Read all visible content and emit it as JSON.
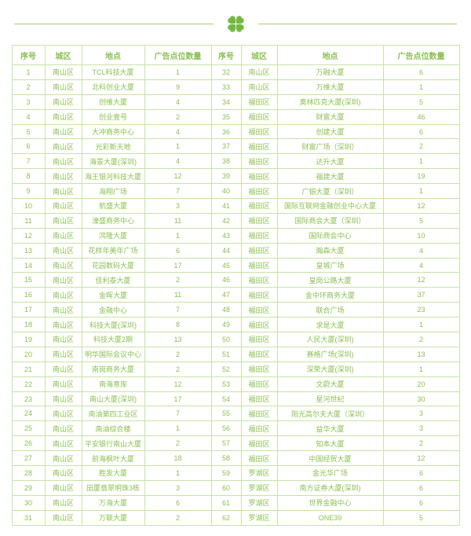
{
  "colors": {
    "accent_green": "#8cc152",
    "border_green": "#c9e3a6",
    "clover_green": "#72b93f",
    "divider_line_green": "#a9cf72"
  },
  "header": {
    "icon": "four-leaf-clover-icon"
  },
  "table": {
    "columns": [
      "序号",
      "城区",
      "地点",
      "广告点位数量",
      "序号",
      "城区",
      "地点",
      "广告点位数量"
    ],
    "rows": [
      [
        1,
        "南山区",
        "TCL科技大厦",
        1,
        32,
        "南山区",
        "万融大厦",
        6
      ],
      [
        2,
        "南山区",
        "北科创业大厦",
        9,
        33,
        "南山区",
        "万维大厦",
        1
      ],
      [
        3,
        "南山区",
        "创维大厦",
        4,
        34,
        "福田区",
        "奥林匹克大厦(深圳)",
        5
      ],
      [
        4,
        "南山区",
        "创业壹号",
        2,
        35,
        "福田区",
        "财富大厦",
        46
      ],
      [
        5,
        "南山区",
        "大冲商务中心",
        4,
        36,
        "福田区",
        "创建大厦",
        6
      ],
      [
        6,
        "南山区",
        "光彩新天地",
        1,
        37,
        "福田区",
        "财富广场（深圳）",
        2
      ],
      [
        7,
        "南山区",
        "海景大厦(深圳)",
        4,
        38,
        "福田区",
        "达升大厦",
        1
      ],
      [
        8,
        "南山区",
        "海王银河科技大厦",
        12,
        39,
        "福田区",
        "福建大厦",
        19
      ],
      [
        9,
        "南山区",
        "海翔广场",
        7,
        40,
        "福田区",
        "广银大厦（深圳）",
        1
      ],
      [
        10,
        "南山区",
        "航盛大厦",
        3,
        41,
        "福田区",
        "国际互联网金融创业中心大厦",
        12
      ],
      [
        11,
        "南山区",
        "濠盛商务中心",
        11,
        42,
        "福田区",
        "国际商会大厦（深圳）",
        5
      ],
      [
        12,
        "南山区",
        "鸿隆大厦",
        1,
        43,
        "福田区",
        "国际商会中心",
        10
      ],
      [
        13,
        "南山区",
        "花样年美年广场",
        6,
        44,
        "福田区",
        "瀚森大厦",
        4
      ],
      [
        14,
        "南山区",
        "花园数码大厦",
        17,
        45,
        "福田区",
        "皇城广场",
        4
      ],
      [
        15,
        "南山区",
        "佳利泰大厦",
        2,
        46,
        "福田区",
        "皇岗公路大厦",
        12
      ],
      [
        16,
        "南山区",
        "金晖大厦",
        11,
        47,
        "福田区",
        "金中环商务大厦",
        37
      ],
      [
        17,
        "南山区",
        "金融中心",
        7,
        48,
        "福田区",
        "联合广场",
        23
      ],
      [
        18,
        "南山区",
        "科技大厦(深圳)",
        8,
        49,
        "福田区",
        "求是大厦",
        1
      ],
      [
        19,
        "南山区",
        "科技大厦2期",
        13,
        50,
        "福田区",
        "人民大厦(深圳)",
        2
      ],
      [
        20,
        "南山区",
        "明华国际会议中心",
        2,
        51,
        "福田区",
        "赛格广场(深圳)",
        13
      ],
      [
        21,
        "南山区",
        "南岗商务大厦",
        2,
        52,
        "福田区",
        "深荣大厦(深圳)",
        1
      ],
      [
        22,
        "南山区",
        "南海意库",
        12,
        53,
        "福田区",
        "文蔚大厦",
        20
      ],
      [
        23,
        "南山区",
        "南山大厦(深圳)",
        17,
        54,
        "福田区",
        "星河世纪",
        30
      ],
      [
        24,
        "南山区",
        "南油第四工业区",
        7,
        55,
        "福田区",
        "阳光高尔夫大厦（深圳）",
        3
      ],
      [
        25,
        "南山区",
        "南油综合楼",
        1,
        56,
        "福田区",
        "益华大厦",
        3
      ],
      [
        26,
        "南山区",
        "平安银行南山大厦",
        2,
        57,
        "福田区",
        "知本大厦",
        2
      ],
      [
        27,
        "南山区",
        "前海枫叶大厦",
        18,
        58,
        "福田区",
        "中国经贸大厦",
        12
      ],
      [
        28,
        "南山区",
        "胜发大厦",
        1,
        59,
        "罗湖区",
        "金光华广场",
        6
      ],
      [
        29,
        "南山区",
        "田厦翡翠明珠3栋",
        3,
        60,
        "罗湖区",
        "南方证券大厦(深圳)",
        6
      ],
      [
        30,
        "南山区",
        "万海大厦",
        6,
        61,
        "罗湖区",
        "世界金融中心",
        6
      ],
      [
        31,
        "南山区",
        "万联大厦",
        2,
        62,
        "罗湖区",
        "ONE39",
        5
      ]
    ]
  }
}
